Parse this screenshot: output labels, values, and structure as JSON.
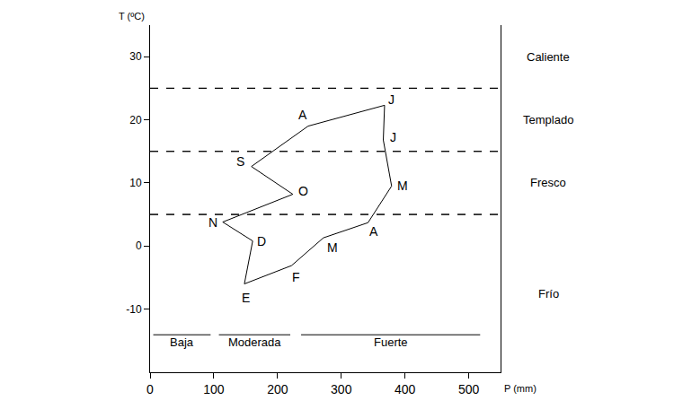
{
  "chart_data": {
    "type": "line",
    "x_label": "P (mm)",
    "y_label": "T (ºC)",
    "labels": [
      "E",
      "F",
      "M",
      "A",
      "M",
      "J",
      "J",
      "A",
      "S",
      "O",
      "N",
      "D"
    ],
    "x": [
      148,
      222,
      272,
      342,
      379,
      366,
      368,
      248,
      159,
      224,
      114,
      161
    ],
    "values": [
      -6,
      -3.1,
      1.3,
      3.7,
      9.5,
      16.8,
      22.3,
      19,
      12.6,
      8.2,
      3.8,
      0.8
    ],
    "color": "#000000",
    "line_style": "solid",
    "xlim": [
      0,
      550
    ],
    "ylim": [
      -20,
      35
    ],
    "xticks": [
      0,
      100,
      200,
      300,
      400,
      500
    ],
    "yticks": [
      -10,
      0,
      10,
      20,
      30
    ],
    "grid": false,
    "temperature_zones": [
      {
        "label": "Caliente",
        "lower": 25,
        "upper": 35
      },
      {
        "label": "Templado",
        "lower": 15,
        "upper": 25
      },
      {
        "label": "Fresco",
        "lower": 5,
        "upper": 15
      },
      {
        "label": "Frío",
        "lower": -20,
        "upper": 5
      }
    ],
    "precipitation_bands": [
      {
        "label": "Baja",
        "from": 5,
        "to": 95
      },
      {
        "label": "Moderada",
        "from": 108,
        "to": 220
      },
      {
        "label": "Fuerte",
        "from": 237,
        "to": 518
      }
    ]
  }
}
